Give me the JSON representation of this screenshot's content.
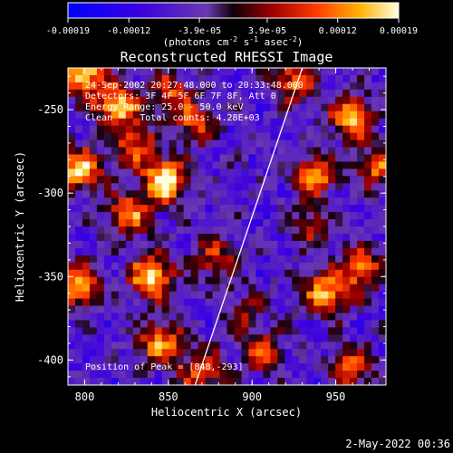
{
  "chart_data": {
    "type": "heatmap",
    "title": "Reconstructed RHESSI Image",
    "xlabel": "Heliocentric X (arcsec)",
    "ylabel": "Heliocentric Y (arcsec)",
    "xlim": [
      790,
      980
    ],
    "ylim": [
      -415,
      -225
    ],
    "x_ticks": [
      800,
      850,
      900,
      950
    ],
    "x_tick_labels": [
      "800",
      "850",
      "900",
      "950"
    ],
    "y_ticks": [
      -250,
      -300,
      -350,
      -400
    ],
    "y_tick_labels": [
      "-250",
      "-300",
      "-350",
      "-400"
    ],
    "colorbar": {
      "min": -0.00019,
      "max": 0.00019,
      "ticks": [
        -0.00019,
        -0.00012,
        -3.9e-05,
        3.9e-05,
        0.00012,
        0.00019
      ],
      "tick_labels": [
        "-0.00019",
        "-0.00012",
        "-3.9e-05",
        "3.9e-05",
        "0.00012",
        "0.00019"
      ],
      "unit_prefix": "(photons cm",
      "unit_sup1": "-2",
      "unit_mid1": " s",
      "unit_sup2": "-1",
      "unit_mid2": " asec",
      "unit_sup3": "-2",
      "unit_suffix": ")"
    },
    "annotations": [
      "24-Sep-2002 20:27:48.000 to 20:33:48.000",
      "Detectors: 3F 4F 5F 6F 7F 8F, Att 0",
      "Energy Range: 25.0 - 50.0 keV",
      "Clean     Total counts: 4.28E+03"
    ],
    "peak_label": "Position of Peak = [848,-293]",
    "peak": [
      848,
      -293
    ],
    "limb_line": [
      [
        866,
        -415
      ],
      [
        930,
        -225
      ]
    ],
    "sources": [
      {
        "x": 799,
        "y": -229,
        "amp": 0.9
      },
      {
        "x": 820,
        "y": -248,
        "amp": 0.85
      },
      {
        "x": 797,
        "y": -286,
        "amp": 0.85
      },
      {
        "x": 848,
        "y": -293,
        "amp": 1.0
      },
      {
        "x": 830,
        "y": -272,
        "amp": 0.6
      },
      {
        "x": 866,
        "y": -258,
        "amp": 0.55
      },
      {
        "x": 852,
        "y": -239,
        "amp": 0.5
      },
      {
        "x": 826,
        "y": -313,
        "amp": 0.7
      },
      {
        "x": 840,
        "y": -350,
        "amp": 0.9
      },
      {
        "x": 878,
        "y": -340,
        "amp": 0.5
      },
      {
        "x": 797,
        "y": -355,
        "amp": 0.8
      },
      {
        "x": 845,
        "y": -390,
        "amp": 0.75
      },
      {
        "x": 870,
        "y": -407,
        "amp": 0.6
      },
      {
        "x": 938,
        "y": -290,
        "amp": 0.7
      },
      {
        "x": 960,
        "y": -255,
        "amp": 0.8
      },
      {
        "x": 975,
        "y": -285,
        "amp": 0.6
      },
      {
        "x": 925,
        "y": -232,
        "amp": 0.65
      },
      {
        "x": 944,
        "y": -360,
        "amp": 0.8
      },
      {
        "x": 965,
        "y": -345,
        "amp": 0.7
      },
      {
        "x": 960,
        "y": -405,
        "amp": 0.6
      },
      {
        "x": 905,
        "y": -395,
        "amp": 0.55
      },
      {
        "x": 895,
        "y": -370,
        "amp": 0.35
      },
      {
        "x": 935,
        "y": -320,
        "amp": 0.4
      }
    ],
    "grid": false
  },
  "footer": {
    "timestamp": "2-May-2022 00:36"
  }
}
